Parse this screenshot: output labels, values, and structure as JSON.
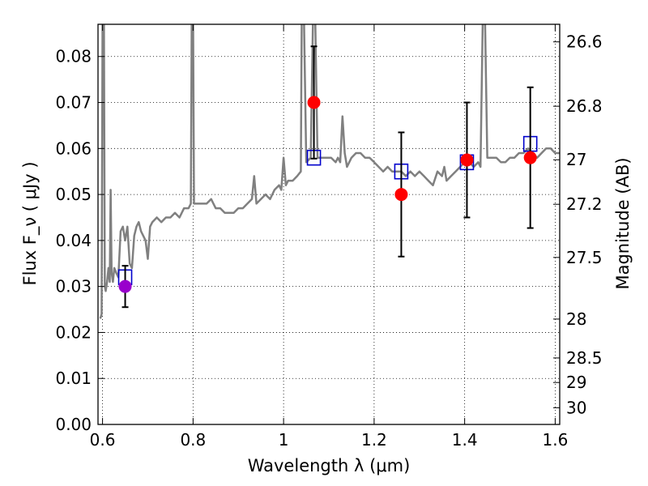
{
  "chart_data": {
    "type": "scatter",
    "title": "",
    "xlabel": "Wavelength  λ (μm)",
    "ylabel": "Flux  F_ν  ( μJy )",
    "ylabel_right": "Magnitude (AB)",
    "xlim": [
      0.59,
      1.61
    ],
    "ylim": [
      0.0,
      0.087
    ],
    "grid": true,
    "x_ticks": [
      0.6,
      0.8,
      1.0,
      1.2,
      1.4,
      1.6
    ],
    "x_tick_labels": [
      "0.6",
      "0.8",
      "1",
      "1.2",
      "1.4",
      "1.6"
    ],
    "y_ticks": [
      0.0,
      0.01,
      0.02,
      0.03,
      0.04,
      0.05,
      0.06,
      0.07,
      0.08
    ],
    "y_tick_labels": [
      "0.00",
      "0.01",
      "0.02",
      "0.03",
      "0.04",
      "0.05",
      "0.06",
      "0.07",
      "0.08"
    ],
    "right_ticks": [
      {
        "label": "26.6",
        "value": 26.6
      },
      {
        "label": "26.8",
        "value": 26.8
      },
      {
        "label": "27",
        "value": 27.0
      },
      {
        "label": "27.2",
        "value": 27.2
      },
      {
        "label": "27.5",
        "value": 27.5
      },
      {
        "label": "28",
        "value": 28.0
      },
      {
        "label": "28.5",
        "value": 28.5
      },
      {
        "label": "29",
        "value": 29.0
      },
      {
        "label": "30",
        "value": 30.0
      }
    ],
    "model_spectrum": {
      "color": "#808080",
      "points": [
        [
          0.595,
          0.023
        ],
        [
          0.598,
          0.024
        ],
        [
          0.6,
          0.088
        ],
        [
          0.603,
          0.088
        ],
        [
          0.605,
          0.03
        ],
        [
          0.607,
          0.029
        ],
        [
          0.61,
          0.031
        ],
        [
          0.613,
          0.034
        ],
        [
          0.616,
          0.031
        ],
        [
          0.618,
          0.051
        ],
        [
          0.62,
          0.033
        ],
        [
          0.623,
          0.031
        ],
        [
          0.626,
          0.034
        ],
        [
          0.63,
          0.033
        ],
        [
          0.635,
          0.032
        ],
        [
          0.64,
          0.042
        ],
        [
          0.645,
          0.043
        ],
        [
          0.65,
          0.04
        ],
        [
          0.655,
          0.043
        ],
        [
          0.66,
          0.035
        ],
        [
          0.665,
          0.034
        ],
        [
          0.67,
          0.041
        ],
        [
          0.675,
          0.043
        ],
        [
          0.68,
          0.044
        ],
        [
          0.685,
          0.042
        ],
        [
          0.69,
          0.041
        ],
        [
          0.695,
          0.04
        ],
        [
          0.7,
          0.036
        ],
        [
          0.705,
          0.043
        ],
        [
          0.71,
          0.044
        ],
        [
          0.72,
          0.045
        ],
        [
          0.73,
          0.044
        ],
        [
          0.74,
          0.045
        ],
        [
          0.75,
          0.045
        ],
        [
          0.76,
          0.046
        ],
        [
          0.77,
          0.045
        ],
        [
          0.78,
          0.047
        ],
        [
          0.79,
          0.047
        ],
        [
          0.795,
          0.048
        ],
        [
          0.797,
          0.088
        ],
        [
          0.8,
          0.088
        ],
        [
          0.802,
          0.048
        ],
        [
          0.81,
          0.048
        ],
        [
          0.82,
          0.048
        ],
        [
          0.83,
          0.048
        ],
        [
          0.84,
          0.049
        ],
        [
          0.85,
          0.047
        ],
        [
          0.86,
          0.047
        ],
        [
          0.87,
          0.046
        ],
        [
          0.88,
          0.046
        ],
        [
          0.89,
          0.046
        ],
        [
          0.9,
          0.047
        ],
        [
          0.91,
          0.047
        ],
        [
          0.92,
          0.048
        ],
        [
          0.93,
          0.049
        ],
        [
          0.935,
          0.054
        ],
        [
          0.94,
          0.048
        ],
        [
          0.95,
          0.049
        ],
        [
          0.96,
          0.05
        ],
        [
          0.97,
          0.049
        ],
        [
          0.98,
          0.051
        ],
        [
          0.99,
          0.052
        ],
        [
          0.995,
          0.051
        ],
        [
          1.0,
          0.058
        ],
        [
          1.005,
          0.052
        ],
        [
          1.01,
          0.053
        ],
        [
          1.02,
          0.053
        ],
        [
          1.03,
          0.054
        ],
        [
          1.038,
          0.055
        ],
        [
          1.04,
          0.088
        ],
        [
          1.045,
          0.088
        ],
        [
          1.05,
          0.057
        ],
        [
          1.06,
          0.058
        ],
        [
          1.065,
          0.088
        ],
        [
          1.07,
          0.088
        ],
        [
          1.075,
          0.058
        ],
        [
          1.085,
          0.058
        ],
        [
          1.095,
          0.058
        ],
        [
          1.105,
          0.058
        ],
        [
          1.115,
          0.057
        ],
        [
          1.12,
          0.058
        ],
        [
          1.125,
          0.057
        ],
        [
          1.13,
          0.067
        ],
        [
          1.135,
          0.059
        ],
        [
          1.14,
          0.056
        ],
        [
          1.15,
          0.058
        ],
        [
          1.16,
          0.059
        ],
        [
          1.17,
          0.059
        ],
        [
          1.18,
          0.058
        ],
        [
          1.19,
          0.058
        ],
        [
          1.2,
          0.057
        ],
        [
          1.21,
          0.056
        ],
        [
          1.22,
          0.055
        ],
        [
          1.23,
          0.056
        ],
        [
          1.24,
          0.055
        ],
        [
          1.25,
          0.055
        ],
        [
          1.26,
          0.055
        ],
        [
          1.27,
          0.054
        ],
        [
          1.28,
          0.055
        ],
        [
          1.29,
          0.054
        ],
        [
          1.3,
          0.055
        ],
        [
          1.31,
          0.054
        ],
        [
          1.32,
          0.053
        ],
        [
          1.33,
          0.052
        ],
        [
          1.34,
          0.055
        ],
        [
          1.35,
          0.054
        ],
        [
          1.355,
          0.056
        ],
        [
          1.36,
          0.053
        ],
        [
          1.37,
          0.054
        ],
        [
          1.38,
          0.055
        ],
        [
          1.39,
          0.056
        ],
        [
          1.4,
          0.057
        ],
        [
          1.41,
          0.057
        ],
        [
          1.42,
          0.056
        ],
        [
          1.43,
          0.057
        ],
        [
          1.435,
          0.056
        ],
        [
          1.44,
          0.088
        ],
        [
          1.445,
          0.088
        ],
        [
          1.45,
          0.058
        ],
        [
          1.46,
          0.058
        ],
        [
          1.47,
          0.058
        ],
        [
          1.48,
          0.057
        ],
        [
          1.49,
          0.057
        ],
        [
          1.5,
          0.058
        ],
        [
          1.51,
          0.058
        ],
        [
          1.52,
          0.059
        ],
        [
          1.53,
          0.059
        ],
        [
          1.54,
          0.06
        ],
        [
          1.55,
          0.059
        ],
        [
          1.56,
          0.058
        ],
        [
          1.57,
          0.059
        ],
        [
          1.58,
          0.06
        ],
        [
          1.59,
          0.06
        ],
        [
          1.6,
          0.059
        ],
        [
          1.61,
          0.059
        ]
      ]
    },
    "series": [
      {
        "marker": "square-open",
        "color": "#0000cc",
        "points": [
          {
            "x": 0.65,
            "y": 0.032
          },
          {
            "x": 1.067,
            "y": 0.058
          },
          {
            "x": 1.26,
            "y": 0.055
          },
          {
            "x": 1.405,
            "y": 0.057
          },
          {
            "x": 1.545,
            "y": 0.061
          }
        ]
      },
      {
        "marker": "circle-filled",
        "color": "#ff0000",
        "points": [
          {
            "x": 0.65,
            "y": 0.03,
            "yerr": 0.0045,
            "color": "#9900cc"
          },
          {
            "x": 1.067,
            "y": 0.07,
            "yerr": 0.0122
          },
          {
            "x": 1.26,
            "y": 0.05,
            "yerr": 0.0135
          },
          {
            "x": 1.405,
            "y": 0.0575,
            "yerr": 0.0125
          },
          {
            "x": 1.545,
            "y": 0.058,
            "yerr": 0.0153
          }
        ]
      }
    ]
  }
}
